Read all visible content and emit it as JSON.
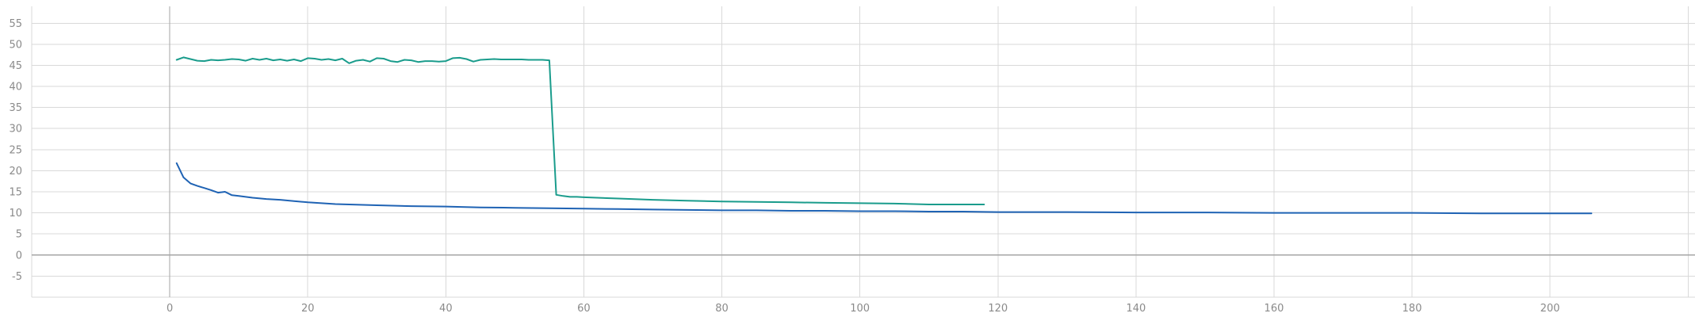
{
  "chart_data": {
    "type": "line",
    "title": "",
    "xlabel": "",
    "ylabel": "",
    "xlim": [
      -20,
      221
    ],
    "ylim": [
      -10,
      59
    ],
    "x_ticks": [
      0,
      20,
      40,
      60,
      80,
      100,
      120,
      140,
      160,
      180,
      200
    ],
    "y_ticks": [
      -5,
      0,
      5,
      10,
      15,
      20,
      25,
      30,
      35,
      40,
      45,
      50,
      55
    ],
    "grid": true,
    "legend": "none",
    "series": [
      {
        "color": "#1a9c8c",
        "x": [
          1,
          2,
          3,
          4,
          5,
          6,
          7,
          8,
          9,
          10,
          11,
          12,
          13,
          14,
          15,
          16,
          17,
          18,
          19,
          20,
          21,
          22,
          23,
          24,
          25,
          26,
          27,
          28,
          29,
          30,
          31,
          32,
          33,
          34,
          35,
          36,
          37,
          38,
          39,
          40,
          41,
          42,
          43,
          44,
          45,
          46,
          47,
          48,
          49,
          50,
          51,
          52,
          53,
          54,
          55,
          56,
          57,
          58,
          59,
          60,
          65,
          70,
          75,
          80,
          85,
          90,
          95,
          100,
          105,
          110,
          115,
          118
        ],
        "y": [
          46.3,
          46.9,
          46.5,
          46.1,
          46.0,
          46.3,
          46.2,
          46.3,
          46.5,
          46.4,
          46.1,
          46.6,
          46.3,
          46.6,
          46.2,
          46.4,
          46.1,
          46.4,
          46.0,
          46.7,
          46.6,
          46.3,
          46.5,
          46.2,
          46.6,
          45.5,
          46.1,
          46.3,
          45.9,
          46.7,
          46.6,
          46.0,
          45.8,
          46.3,
          46.2,
          45.8,
          46.0,
          46.0,
          45.9,
          46.0,
          46.7,
          46.8,
          46.5,
          45.9,
          46.3,
          46.4,
          46.5,
          46.4,
          46.4,
          46.4,
          46.4,
          46.3,
          46.3,
          46.3,
          46.2,
          14.3,
          14.0,
          13.8,
          13.8,
          13.7,
          13.4,
          13.1,
          12.9,
          12.7,
          12.6,
          12.5,
          12.4,
          12.3,
          12.2,
          12.0,
          12.0,
          12.0
        ]
      },
      {
        "color": "#1f63b4",
        "x": [
          1,
          2,
          3,
          4,
          5,
          6,
          7,
          8,
          9,
          10,
          12,
          14,
          16,
          18,
          20,
          22,
          24,
          26,
          28,
          30,
          35,
          40,
          45,
          50,
          55,
          60,
          65,
          70,
          75,
          80,
          85,
          90,
          95,
          100,
          105,
          110,
          115,
          120,
          130,
          140,
          150,
          160,
          170,
          180,
          190,
          200,
          206
        ],
        "y": [
          21.8,
          18.4,
          17.0,
          16.4,
          15.9,
          15.4,
          14.8,
          15.0,
          14.2,
          14.0,
          13.6,
          13.3,
          13.1,
          12.8,
          12.5,
          12.3,
          12.1,
          12.0,
          11.9,
          11.8,
          11.6,
          11.5,
          11.3,
          11.2,
          11.1,
          11.0,
          10.9,
          10.8,
          10.7,
          10.6,
          10.6,
          10.5,
          10.5,
          10.4,
          10.4,
          10.3,
          10.3,
          10.2,
          10.2,
          10.1,
          10.1,
          10.0,
          10.0,
          10.0,
          9.9,
          9.9,
          9.9
        ]
      }
    ]
  }
}
